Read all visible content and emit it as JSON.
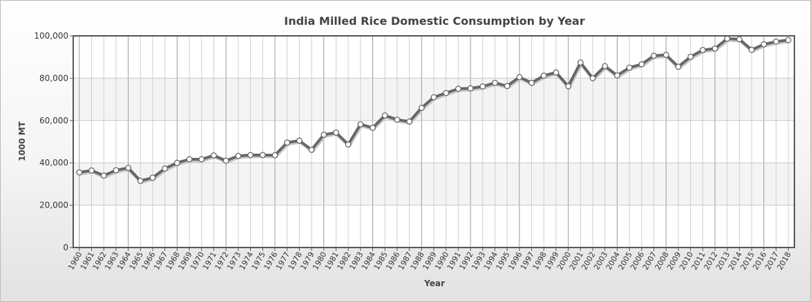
{
  "chart_data": {
    "type": "line",
    "title": "India Milled Rice Domestic Consumption by Year",
    "xlabel": "Year",
    "ylabel": "1000 MT",
    "ylim": [
      0,
      100000
    ],
    "y_ticks": [
      "0",
      "20,000",
      "40,000",
      "60,000",
      "80,000",
      "100,000"
    ],
    "grid": true,
    "categories": [
      "1960",
      "1961",
      "1962",
      "1963",
      "1964",
      "1965",
      "1966",
      "1967",
      "1968",
      "1969",
      "1970",
      "1971",
      "1972",
      "1973",
      "1974",
      "1975",
      "1976",
      "1977",
      "1978",
      "1979",
      "1980",
      "1981",
      "1982",
      "1983",
      "1984",
      "1985",
      "1986",
      "1987",
      "1988",
      "1989",
      "1990",
      "1991",
      "1992",
      "1993",
      "1994",
      "1995",
      "1996",
      "1997",
      "1998",
      "1999",
      "2000",
      "2001",
      "2002",
      "2003",
      "2004",
      "2005",
      "2006",
      "2007",
      "2008",
      "2009",
      "2010",
      "2011",
      "2012",
      "2013",
      "2014",
      "2015",
      "2016",
      "2017",
      "2018"
    ],
    "series": [
      {
        "color": "#666666",
        "values": [
          35500,
          36400,
          34000,
          36500,
          37600,
          31500,
          33000,
          37300,
          40000,
          41700,
          41700,
          43500,
          41000,
          43300,
          43700,
          43700,
          43600,
          49600,
          50500,
          46200,
          53300,
          54300,
          48700,
          58200,
          56600,
          62400,
          60400,
          59500,
          66000,
          71000,
          73000,
          75000,
          75200,
          76100,
          77800,
          76300,
          80500,
          77800,
          81200,
          82700,
          76200,
          87400,
          80000,
          85700,
          81300,
          85000,
          86600,
          90600,
          91000,
          85400,
          90100,
          93300,
          94000,
          98700,
          98400,
          93400,
          96000,
          97300,
          98000
        ]
      }
    ]
  }
}
